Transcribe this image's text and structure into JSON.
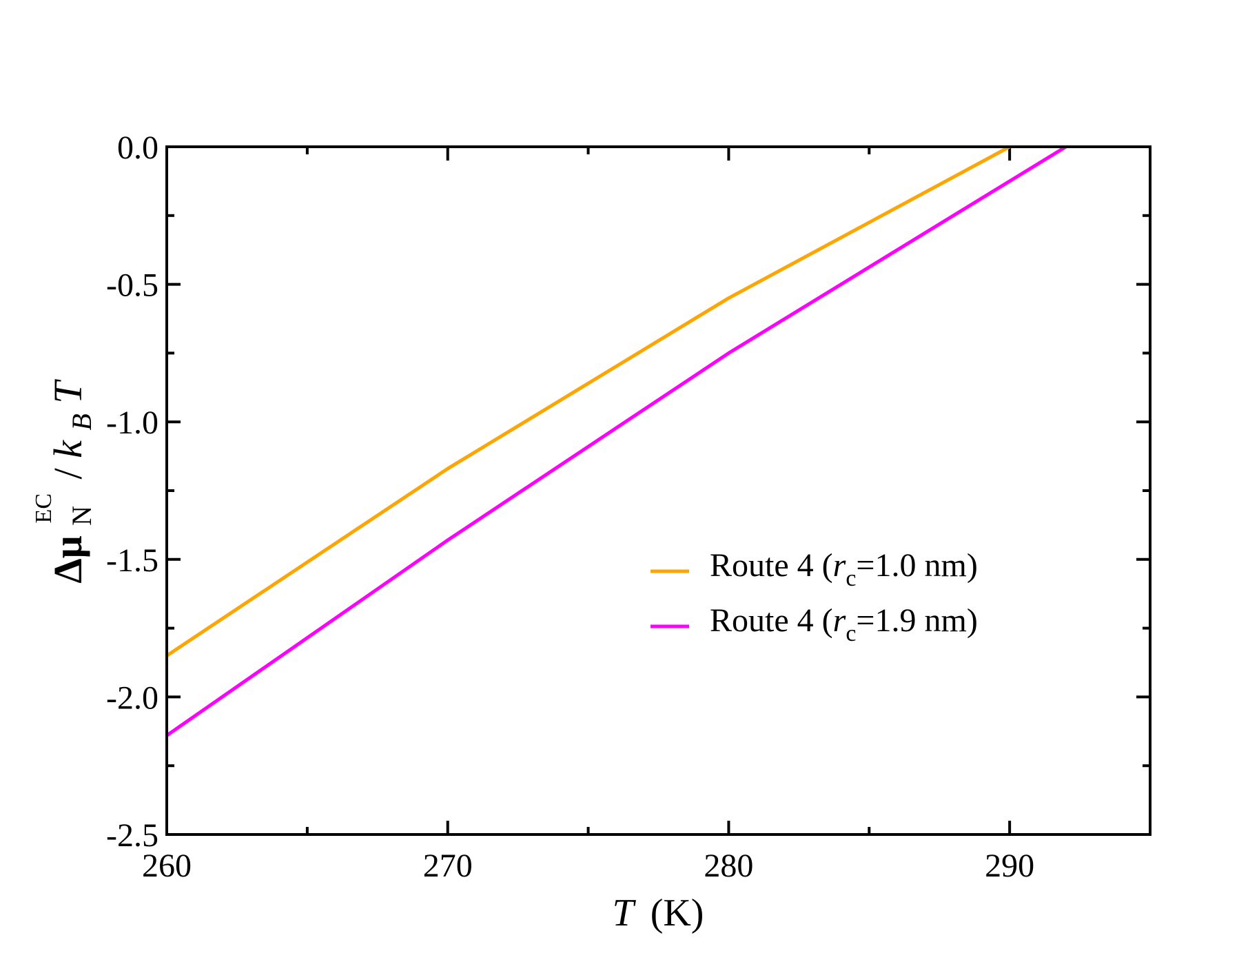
{
  "chart_data": {
    "type": "line",
    "xlabel": "T (K)",
    "xlabel_parts": {
      "var": "T",
      "unit": "(K)"
    },
    "ylabel": "Δμ_N^EC / k_B T",
    "ylabel_parts": {
      "delta_mu": "Δμ",
      "sub": "N",
      "sup": "EC",
      "slash": "/ ",
      "k": "k",
      "ksub": "B",
      "T": "T"
    },
    "xlim": [
      260,
      295
    ],
    "ylim": [
      -2.5,
      0.0
    ],
    "x_ticks": [
      260,
      270,
      280,
      290
    ],
    "x_tick_labels": [
      "260",
      "270",
      "280",
      "290"
    ],
    "y_ticks": [
      0.0,
      -0.5,
      -1.0,
      -1.5,
      -2.0,
      -2.5
    ],
    "y_tick_labels": [
      "0.0",
      "-0.5",
      "-1.0",
      "-1.5",
      "-2.0",
      "-2.5"
    ],
    "x_minor_step": 5,
    "y_minor_step": 0.25,
    "grid": false,
    "legend_position": "center-right",
    "series": [
      {
        "name": "Route 4 (r_c=1.0 nm)",
        "label_parts": {
          "pre": "Route 4 (",
          "r": "r",
          "sub": "c",
          "post": "=1.0 nm)"
        },
        "color": "#ffa500",
        "x": [
          260,
          270,
          280,
          290
        ],
        "y": [
          -1.85,
          -1.17,
          -0.55,
          0.0
        ]
      },
      {
        "name": "Route 4 (r_c=1.9 nm)",
        "label_parts": {
          "pre": "Route 4 (",
          "r": "r",
          "sub": "c",
          "post": "=1.9 nm)"
        },
        "color": "#ff00ff",
        "x": [
          260,
          270,
          280,
          292
        ],
        "y": [
          -2.14,
          -1.43,
          -0.75,
          0.0
        ]
      }
    ]
  }
}
